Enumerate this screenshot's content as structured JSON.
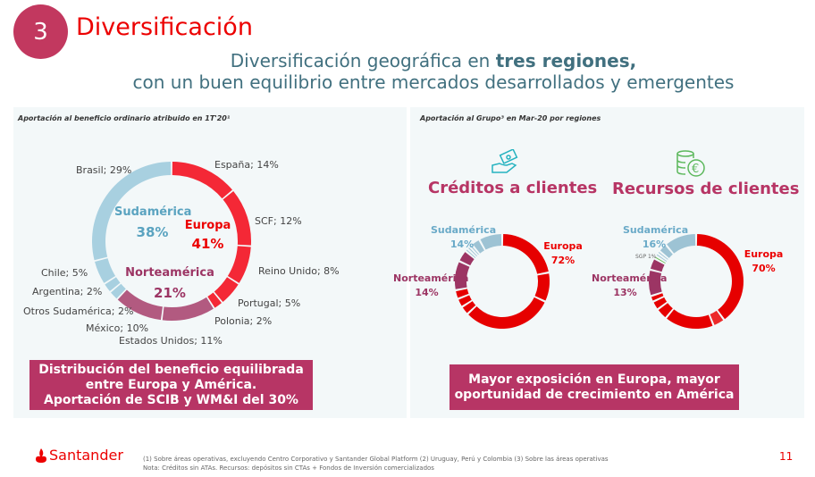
{
  "header": {
    "number": "3",
    "title": "Diversificación",
    "subtitle_pre": "Diversificación geográfica en ",
    "subtitle_bold": "tres regiones,",
    "subtitle_line2": "con un buen equilibrio entre mercados desarrollados y emergentes"
  },
  "left": {
    "caption": "Aportación al beneficio ordinario atribuido en 1T'20¹",
    "regions": [
      {
        "name": "Sudamérica",
        "value": "38%"
      },
      {
        "name": "Europa",
        "value": "41%"
      },
      {
        "name": "Norteamérica",
        "value": "21%"
      }
    ],
    "labels": [
      "España; 14%",
      "SCF; 12%",
      "Reino Unido; 8%",
      "Portugal; 5%",
      "Polonia; 2%",
      "Estados Unidos; 11%",
      "México; 10%",
      "Otros Sudamérica; 2%",
      "Argentina; 2%",
      "Chile; 5%",
      "Brasil; 29%"
    ],
    "box": [
      "Distribución del beneficio equilibrada",
      "entre Europa y América.",
      "Aportación de SCIB y WM&I del 30%"
    ]
  },
  "right": {
    "caption": "Aportación al Grupo³ en Mar-20 por regiones",
    "creditos": {
      "title": "Créditos a clientes",
      "sud": "Sudamérica",
      "sud_v": "14%",
      "eur": "Europa",
      "eur_v": "72%",
      "nor": "Norteamérica",
      "nor_v": "14%"
    },
    "recursos": {
      "title": "Recursos de clientes",
      "sud": "Sudamérica",
      "sud_v": "16%",
      "eur": "Europa",
      "eur_v": "70%",
      "nor": "Norteamérica",
      "nor_v": "13%",
      "sgp": "SGP 1%"
    },
    "box": [
      "Mayor exposición en Europa, mayor",
      "oportunidad de crecimiento en América"
    ]
  },
  "chart_data": [
    {
      "type": "pie",
      "title": "Aportación al beneficio ordinario atribuido en 1T'20",
      "categories": [
        "España",
        "SCF",
        "Reino Unido",
        "Portugal",
        "Polonia",
        "Estados Unidos",
        "México",
        "Otros Sudamérica",
        "Argentina",
        "Chile",
        "Brasil"
      ],
      "values": [
        14,
        12,
        8,
        5,
        2,
        11,
        10,
        2,
        2,
        5,
        29
      ],
      "colors": [
        "#f42836",
        "#f42836",
        "#f42836",
        "#f42836",
        "#f42836",
        "#b25a80",
        "#b25a80",
        "#a8d0e0",
        "#a8d0e0",
        "#a8d0e0",
        "#a8d0e0"
      ]
    },
    {
      "type": "pie",
      "title": "Créditos a clientes",
      "categories": [
        "Europa",
        "Europa",
        "Europa",
        "Europa",
        "Europa",
        "Europa",
        "Norteamérica",
        "Norteamérica",
        "Sudamérica",
        "Sudamérica",
        "Sudamérica",
        "Sudamérica",
        "Sudamérica"
      ],
      "values": [
        22,
        10,
        31,
        3,
        3,
        3,
        10,
        4,
        1,
        1,
        1,
        3,
        8
      ],
      "colors": [
        "#e60000",
        "#e60000",
        "#e60000",
        "#e60000",
        "#e60000",
        "#e60000",
        "#9c3564",
        "#9c3564",
        "#9dc3d4",
        "#9dc3d4",
        "#9dc3d4",
        "#9dc3d4",
        "#9dc3d4"
      ]
    },
    {
      "type": "pie",
      "title": "Recursos de clientes",
      "categories": [
        "Europa",
        "Europa",
        "Europa",
        "Europa",
        "Europa",
        "Europa",
        "Norteamérica",
        "Norteamérica",
        "SGP",
        "Sudamérica",
        "Sudamérica",
        "Sudamérica",
        "Sudamérica"
      ],
      "values": [
        40,
        4,
        17,
        4,
        3,
        2,
        9,
        4,
        1,
        1,
        1,
        3,
        11
      ],
      "colors": [
        "#e60000",
        "#ec2a2a",
        "#e60000",
        "#e60000",
        "#e60000",
        "#e60000",
        "#9c3564",
        "#9c3564",
        "#6cbf5a",
        "#9dc3d4",
        "#9dc3d4",
        "#9dc3d4",
        "#9dc3d4"
      ]
    }
  ],
  "footer": {
    "brand": "Santander",
    "note1": "(1) Sobre áreas operativas, excluyendo Centro Corporativo y Santander Global Platform (2) Uruguay, Perú y Colombia (3) Sobre las áreas operativas",
    "note2": "Nota: Créditos sin ATAs. Recursos: depósitos sin CTAs + Fondos de Inversión comercializados",
    "page": "11"
  }
}
